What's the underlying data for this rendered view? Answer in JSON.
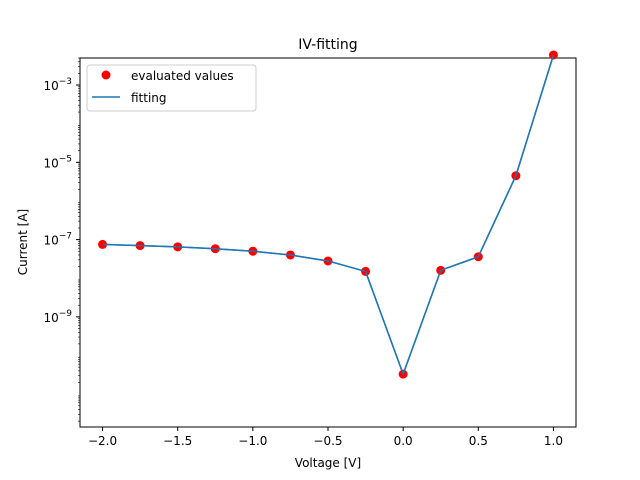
{
  "chart_data": {
    "type": "line",
    "title": "IV-fitting",
    "xlabel": "Voltage [V]",
    "ylabel": "Current [A]",
    "xlim": [
      -2.15,
      1.15
    ],
    "ylim_log10": [
      -11.85,
      -2.3
    ],
    "yscale": "log",
    "grid": false,
    "legend_position": "top-left",
    "x_ticks": [
      {
        "value": -2.0,
        "label": "−2.0"
      },
      {
        "value": -1.5,
        "label": "−1.5"
      },
      {
        "value": -1.0,
        "label": "−1.0"
      },
      {
        "value": -0.5,
        "label": "−0.5"
      },
      {
        "value": 0.0,
        "label": "0.0"
      },
      {
        "value": 0.5,
        "label": "0.5"
      },
      {
        "value": 1.0,
        "label": "1.0"
      }
    ],
    "y_ticks": [
      {
        "exp": -9,
        "base": "10",
        "sup": "−9"
      },
      {
        "exp": -7,
        "base": "10",
        "sup": "−7"
      },
      {
        "exp": -5,
        "base": "10",
        "sup": "−5"
      },
      {
        "exp": -3,
        "base": "10",
        "sup": "−3"
      }
    ],
    "x": [
      -2.0,
      -1.75,
      -1.5,
      -1.25,
      -1.0,
      -0.75,
      -0.5,
      -0.25,
      0.0,
      0.25,
      0.5,
      0.75,
      1.0
    ],
    "series": [
      {
        "name": "evaluated values",
        "kind": "scatter",
        "color": "#ff0000",
        "values": [
          7.5e-08,
          7e-08,
          6.5e-08,
          5.8e-08,
          5e-08,
          4e-08,
          2.8e-08,
          1.5e-08,
          3.3e-11,
          1.6e-08,
          3.6e-08,
          4.5e-06,
          0.006
        ]
      },
      {
        "name": "fitting",
        "kind": "line",
        "color": "#1f77b4",
        "values": [
          7.5e-08,
          7e-08,
          6.5e-08,
          5.8e-08,
          5e-08,
          4e-08,
          2.8e-08,
          1.5e-08,
          3.3e-11,
          1.6e-08,
          3.6e-08,
          4.5e-06,
          0.006
        ]
      }
    ]
  }
}
